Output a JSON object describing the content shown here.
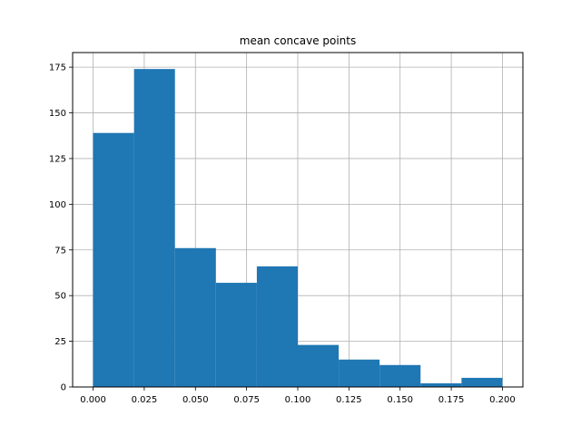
{
  "chart_data": {
    "type": "bar",
    "title": "mean concave points",
    "xlabel": "",
    "ylabel": "",
    "bin_edges": [
      0.0,
      0.02,
      0.04,
      0.06,
      0.08,
      0.1,
      0.12,
      0.14,
      0.16,
      0.18,
      0.2
    ],
    "values": [
      139,
      174,
      76,
      57,
      66,
      23,
      15,
      12,
      2,
      5
    ],
    "xlim": [
      -0.01,
      0.21
    ],
    "ylim": [
      0,
      183
    ],
    "x_ticks": [
      {
        "value": 0.0,
        "label": "0.000"
      },
      {
        "value": 0.025,
        "label": "0.025"
      },
      {
        "value": 0.05,
        "label": "0.050"
      },
      {
        "value": 0.075,
        "label": "0.075"
      },
      {
        "value": 0.1,
        "label": "0.100"
      },
      {
        "value": 0.125,
        "label": "0.125"
      },
      {
        "value": 0.15,
        "label": "0.150"
      },
      {
        "value": 0.175,
        "label": "0.175"
      },
      {
        "value": 0.2,
        "label": "0.200"
      }
    ],
    "y_ticks": [
      {
        "value": 0,
        "label": "0"
      },
      {
        "value": 25,
        "label": "25"
      },
      {
        "value": 50,
        "label": "50"
      },
      {
        "value": 75,
        "label": "75"
      },
      {
        "value": 100,
        "label": "100"
      },
      {
        "value": 125,
        "label": "125"
      },
      {
        "value": 150,
        "label": "150"
      },
      {
        "value": 175,
        "label": "175"
      }
    ],
    "grid": true,
    "bar_color": "#1f77b4",
    "grid_color": "#b0b0b0"
  }
}
